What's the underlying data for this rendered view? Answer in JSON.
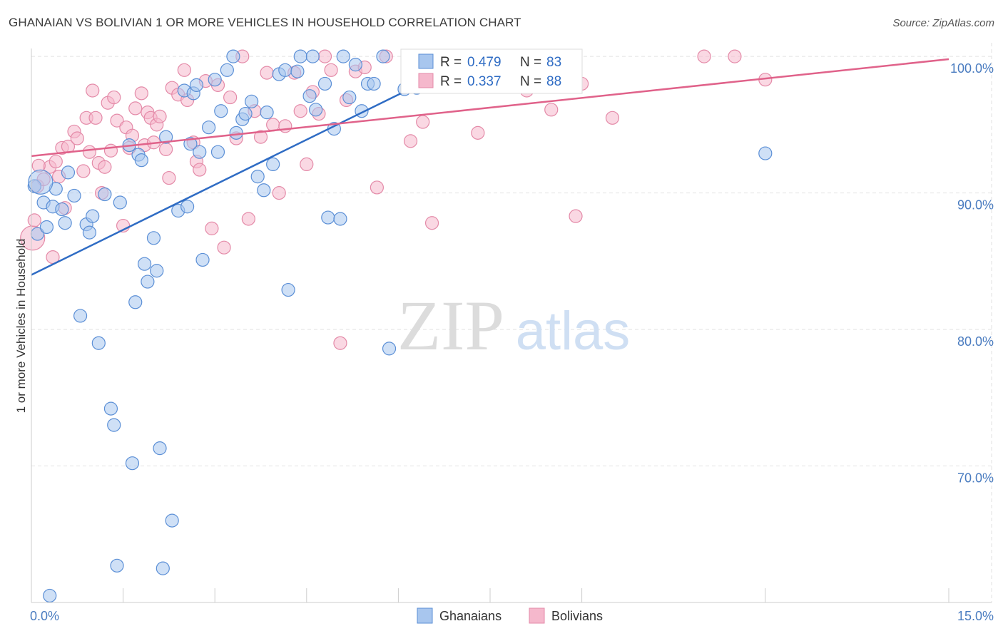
{
  "title": "GHANAIAN VS BOLIVIAN 1 OR MORE VEHICLES IN HOUSEHOLD CORRELATION CHART",
  "source": "Source: ZipAtlas.com",
  "watermark": {
    "zip": "ZIP",
    "atlas": "atlas"
  },
  "colors": {
    "blue_fill": "#a8c6ee",
    "blue_stroke": "#5b8fd6",
    "blue_line": "#2f6cc4",
    "pink_fill": "#f5b8cc",
    "pink_stroke": "#e48aa8",
    "pink_line": "#e0628a",
    "grid": "#e2e2e2",
    "axis_text": "#4a7cc0"
  },
  "stats_box": {
    "rows": [
      {
        "series": "Ghanaians",
        "r_label": "R =",
        "r_value": "0.479",
        "n_label": "N =",
        "n_value": "83"
      },
      {
        "series": "Bolivians",
        "r_label": "R =",
        "r_value": "0.337",
        "n_label": "N =",
        "n_value": "88"
      }
    ]
  },
  "chart_data": {
    "type": "scatter",
    "title": "GHANAIAN VS BOLIVIAN 1 OR MORE VEHICLES IN HOUSEHOLD CORRELATION CHART",
    "xlabel": "",
    "ylabel": "1 or more Vehicles in Household",
    "xlim": [
      0,
      15
    ],
    "ylim": [
      60,
      101
    ],
    "x_ticks": [
      {
        "value": 0,
        "label": "0.0%"
      },
      {
        "value": 15,
        "label": "15.0%"
      }
    ],
    "y_ticks": [
      {
        "value": 70,
        "label": "70.0%"
      },
      {
        "value": 80,
        "label": "80.0%"
      },
      {
        "value": 90,
        "label": "90.0%"
      },
      {
        "value": 100,
        "label": "100.0%"
      }
    ],
    "x_minor_ticks": [
      0,
      1.5,
      3,
      4.5,
      6,
      7.5,
      9,
      12,
      15
    ],
    "grid": true,
    "legend_position": "bottom",
    "series": [
      {
        "name": "Ghanaians",
        "color": "#a8c6ee",
        "trend": {
          "x0": 0,
          "y0": 84.0,
          "x1": 7.5,
          "y1": 100.5
        },
        "points": [
          [
            0.05,
            90.5
          ],
          [
            0.1,
            87.0
          ],
          [
            0.2,
            89.3
          ],
          [
            0.25,
            87.5
          ],
          [
            0.3,
            60.5
          ],
          [
            0.35,
            89.0
          ],
          [
            0.4,
            90.3
          ],
          [
            0.5,
            88.8
          ],
          [
            0.55,
            87.8
          ],
          [
            0.6,
            91.5
          ],
          [
            0.7,
            89.8
          ],
          [
            0.8,
            81.0
          ],
          [
            0.9,
            87.7
          ],
          [
            0.95,
            87.1
          ],
          [
            1.0,
            88.3
          ],
          [
            1.1,
            79.0
          ],
          [
            1.2,
            89.9
          ],
          [
            1.3,
            74.2
          ],
          [
            1.35,
            73.0
          ],
          [
            1.4,
            62.7
          ],
          [
            1.45,
            89.3
          ],
          [
            1.6,
            93.5
          ],
          [
            1.65,
            70.2
          ],
          [
            1.7,
            82.0
          ],
          [
            1.75,
            92.8
          ],
          [
            1.8,
            92.4
          ],
          [
            1.85,
            84.8
          ],
          [
            1.9,
            83.5
          ],
          [
            2.0,
            86.7
          ],
          [
            2.05,
            84.3
          ],
          [
            2.1,
            71.3
          ],
          [
            2.15,
            62.5
          ],
          [
            2.2,
            94.1
          ],
          [
            2.3,
            66.0
          ],
          [
            2.4,
            88.7
          ],
          [
            2.5,
            97.5
          ],
          [
            2.55,
            89.0
          ],
          [
            2.6,
            93.6
          ],
          [
            2.65,
            97.3
          ],
          [
            2.7,
            97.9
          ],
          [
            2.75,
            93.0
          ],
          [
            2.8,
            85.1
          ],
          [
            2.9,
            94.8
          ],
          [
            3.0,
            98.3
          ],
          [
            3.05,
            93.0
          ],
          [
            3.1,
            96.0
          ],
          [
            3.2,
            99.0
          ],
          [
            3.3,
            100.0
          ],
          [
            3.35,
            94.4
          ],
          [
            3.45,
            95.4
          ],
          [
            3.5,
            95.8
          ],
          [
            3.6,
            96.7
          ],
          [
            3.7,
            91.2
          ],
          [
            3.8,
            90.2
          ],
          [
            3.85,
            95.9
          ],
          [
            3.95,
            92.1
          ],
          [
            4.05,
            98.7
          ],
          [
            4.15,
            99.0
          ],
          [
            4.2,
            82.9
          ],
          [
            4.35,
            98.9
          ],
          [
            4.4,
            100.0
          ],
          [
            4.55,
            97.1
          ],
          [
            4.6,
            100.0
          ],
          [
            4.65,
            96.1
          ],
          [
            4.8,
            98.0
          ],
          [
            4.85,
            88.2
          ],
          [
            4.95,
            94.7
          ],
          [
            5.05,
            88.1
          ],
          [
            5.1,
            100.0
          ],
          [
            5.2,
            97.0
          ],
          [
            5.3,
            99.4
          ],
          [
            5.4,
            96.0
          ],
          [
            5.5,
            98.0
          ],
          [
            5.6,
            98.0
          ],
          [
            5.75,
            100.0
          ],
          [
            5.85,
            78.6
          ],
          [
            6.1,
            97.6
          ],
          [
            6.3,
            97.7
          ],
          [
            6.4,
            98.5
          ],
          [
            7.1,
            100.0
          ],
          [
            7.2,
            98.3
          ],
          [
            12.0,
            92.9
          ],
          [
            0.15,
            90.8
          ]
        ]
      },
      {
        "name": "Bolivians",
        "color": "#f5b8cc",
        "trend": {
          "x0": 0,
          "y0": 92.7,
          "x1": 15,
          "y1": 99.8
        },
        "points": [
          [
            0.02,
            86.7
          ],
          [
            0.1,
            90.5
          ],
          [
            0.2,
            91.0
          ],
          [
            0.3,
            91.9
          ],
          [
            0.35,
            85.3
          ],
          [
            0.4,
            92.3
          ],
          [
            0.45,
            91.2
          ],
          [
            0.5,
            93.3
          ],
          [
            0.55,
            88.9
          ],
          [
            0.6,
            93.4
          ],
          [
            0.7,
            94.5
          ],
          [
            0.75,
            94.0
          ],
          [
            0.85,
            91.6
          ],
          [
            0.9,
            95.5
          ],
          [
            0.95,
            93.0
          ],
          [
            1.05,
            95.5
          ],
          [
            1.1,
            92.2
          ],
          [
            1.15,
            90.0
          ],
          [
            1.2,
            91.9
          ],
          [
            1.25,
            96.6
          ],
          [
            1.3,
            93.1
          ],
          [
            1.35,
            97.0
          ],
          [
            1.4,
            95.3
          ],
          [
            1.5,
            87.6
          ],
          [
            1.55,
            94.8
          ],
          [
            1.6,
            93.3
          ],
          [
            1.65,
            94.2
          ],
          [
            1.7,
            96.2
          ],
          [
            1.8,
            97.3
          ],
          [
            1.85,
            93.5
          ],
          [
            1.9,
            95.9
          ],
          [
            1.95,
            95.5
          ],
          [
            2.0,
            93.7
          ],
          [
            2.05,
            95.0
          ],
          [
            2.1,
            95.6
          ],
          [
            2.2,
            93.2
          ],
          [
            2.25,
            91.1
          ],
          [
            2.3,
            97.7
          ],
          [
            2.4,
            97.2
          ],
          [
            2.5,
            99.0
          ],
          [
            2.55,
            96.8
          ],
          [
            2.65,
            93.7
          ],
          [
            2.7,
            92.3
          ],
          [
            2.75,
            91.7
          ],
          [
            2.85,
            98.2
          ],
          [
            2.95,
            87.4
          ],
          [
            3.05,
            97.9
          ],
          [
            3.15,
            86.0
          ],
          [
            3.25,
            97.0
          ],
          [
            3.35,
            94.0
          ],
          [
            3.45,
            100.0
          ],
          [
            3.55,
            88.1
          ],
          [
            3.65,
            96.0
          ],
          [
            3.75,
            94.1
          ],
          [
            3.85,
            98.8
          ],
          [
            3.95,
            95.0
          ],
          [
            4.05,
            90.0
          ],
          [
            4.15,
            94.9
          ],
          [
            4.3,
            98.8
          ],
          [
            4.4,
            96.0
          ],
          [
            4.5,
            92.1
          ],
          [
            4.6,
            97.4
          ],
          [
            4.7,
            95.8
          ],
          [
            4.8,
            100.0
          ],
          [
            4.9,
            99.0
          ],
          [
            5.05,
            79.0
          ],
          [
            5.15,
            96.8
          ],
          [
            5.3,
            98.9
          ],
          [
            5.45,
            99.2
          ],
          [
            5.65,
            90.4
          ],
          [
            5.8,
            100.0
          ],
          [
            6.2,
            93.8
          ],
          [
            6.4,
            95.2
          ],
          [
            6.55,
            87.8
          ],
          [
            6.8,
            100.0
          ],
          [
            7.3,
            94.4
          ],
          [
            8.0,
            98.5
          ],
          [
            8.1,
            97.5
          ],
          [
            8.5,
            96.1
          ],
          [
            8.9,
            88.3
          ],
          [
            9.0,
            98.0
          ],
          [
            9.5,
            95.5
          ],
          [
            11.0,
            100.0
          ],
          [
            11.5,
            100.0
          ],
          [
            12.0,
            98.3
          ],
          [
            0.05,
            88.0
          ],
          [
            0.12,
            92.0
          ],
          [
            1.0,
            97.5
          ]
        ]
      }
    ]
  }
}
